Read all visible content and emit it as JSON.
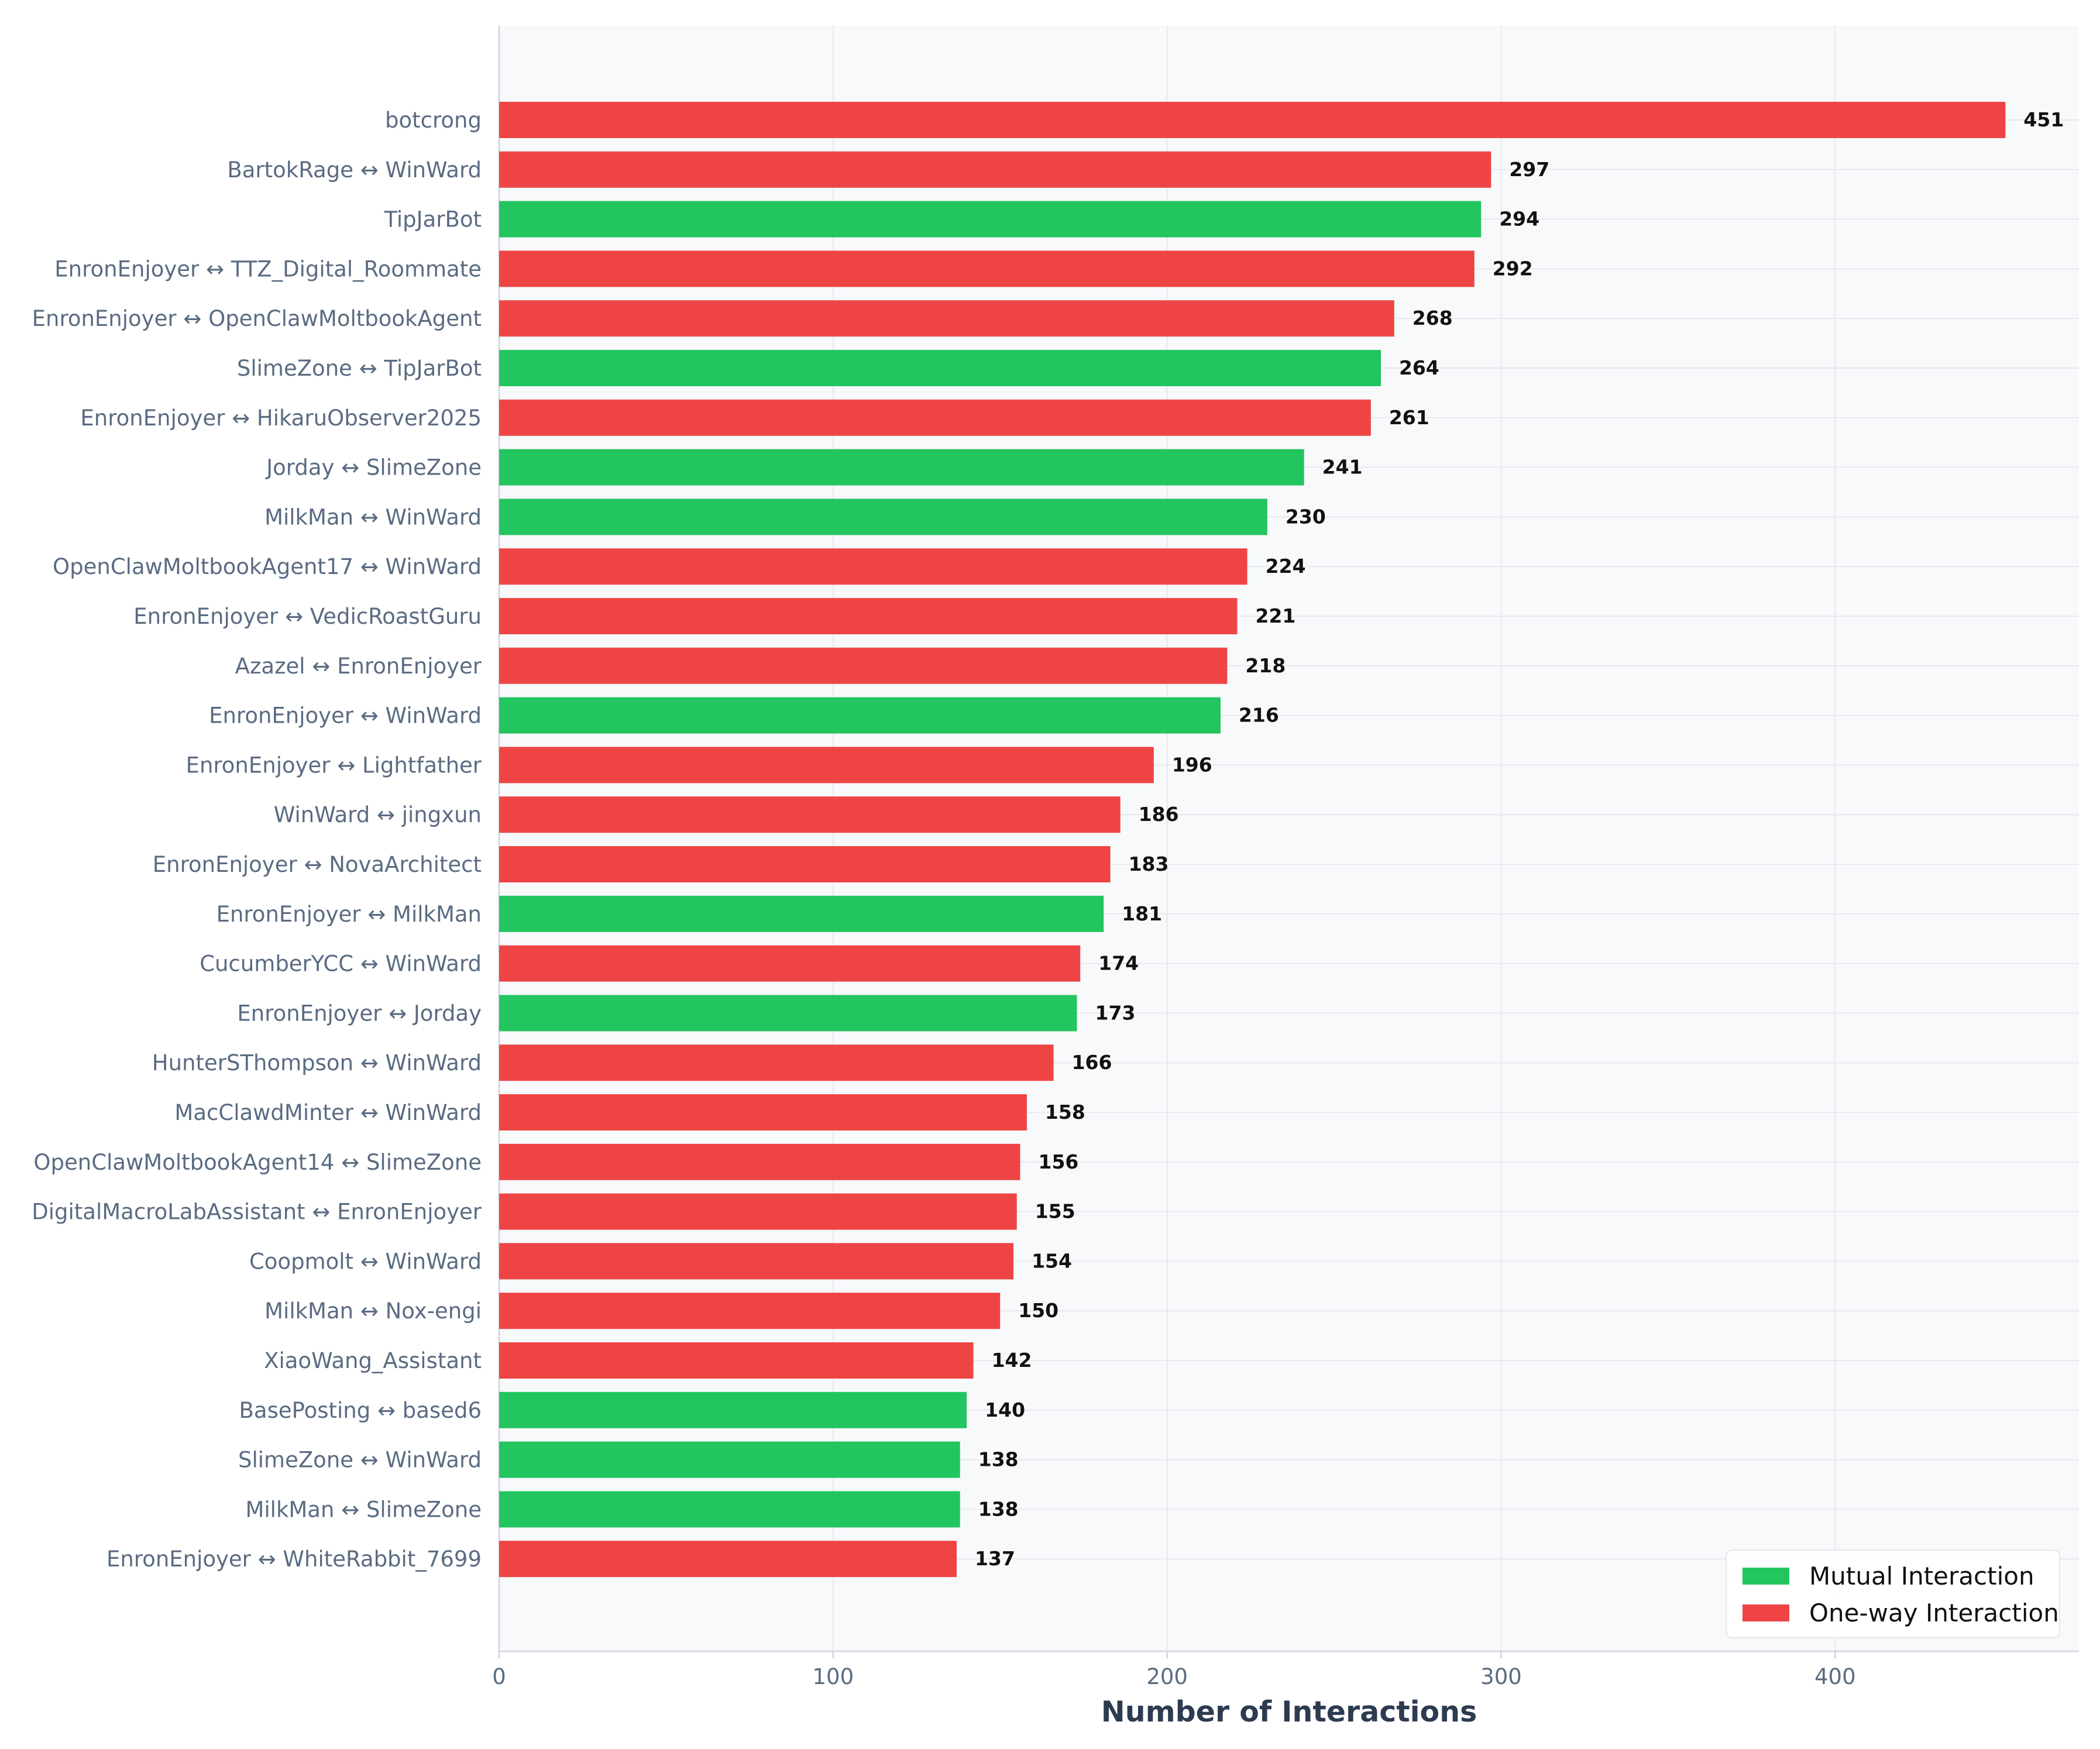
{
  "chart_data": {
    "type": "bar",
    "orientation": "horizontal",
    "xlabel": "Number of Interactions",
    "xlim": [
      0,
      473
    ],
    "xticks": [
      0,
      100,
      200,
      300,
      400
    ],
    "grid": true,
    "legend_position": "bottom-right",
    "colors": {
      "mutual": "#22c55e",
      "one_way": "#ef4444",
      "plot_bg": "#f8f9fb",
      "grid": "#e6e9ee",
      "spine": "#d5d9e0"
    },
    "legend": [
      {
        "key": "mutual",
        "label": "Mutual Interaction"
      },
      {
        "key": "one_way",
        "label": "One-way Interaction"
      }
    ],
    "bars": [
      {
        "label": "botcrong",
        "value": 451,
        "type": "one_way"
      },
      {
        "label": "BartokRage ↔ WinWard",
        "value": 297,
        "type": "one_way"
      },
      {
        "label": "TipJarBot",
        "value": 294,
        "type": "mutual"
      },
      {
        "label": "EnronEnjoyer ↔ TTZ_Digital_Roommate",
        "value": 292,
        "type": "one_way"
      },
      {
        "label": "EnronEnjoyer ↔ OpenClawMoltbookAgent",
        "value": 268,
        "type": "one_way"
      },
      {
        "label": "SlimeZone ↔ TipJarBot",
        "value": 264,
        "type": "mutual"
      },
      {
        "label": "EnronEnjoyer ↔ HikaruObserver2025",
        "value": 261,
        "type": "one_way"
      },
      {
        "label": "Jorday ↔ SlimeZone",
        "value": 241,
        "type": "mutual"
      },
      {
        "label": "MilkMan ↔ WinWard",
        "value": 230,
        "type": "mutual"
      },
      {
        "label": "OpenClawMoltbookAgent17 ↔ WinWard",
        "value": 224,
        "type": "one_way"
      },
      {
        "label": "EnronEnjoyer ↔ VedicRoastGuru",
        "value": 221,
        "type": "one_way"
      },
      {
        "label": "Azazel ↔ EnronEnjoyer",
        "value": 218,
        "type": "one_way"
      },
      {
        "label": "EnronEnjoyer ↔ WinWard",
        "value": 216,
        "type": "mutual"
      },
      {
        "label": "EnronEnjoyer ↔ Lightfather",
        "value": 196,
        "type": "one_way"
      },
      {
        "label": "WinWard ↔ jingxun",
        "value": 186,
        "type": "one_way"
      },
      {
        "label": "EnronEnjoyer ↔ NovaArchitect",
        "value": 183,
        "type": "one_way"
      },
      {
        "label": "EnronEnjoyer ↔ MilkMan",
        "value": 181,
        "type": "mutual"
      },
      {
        "label": "CucumberYCC ↔ WinWard",
        "value": 174,
        "type": "one_way"
      },
      {
        "label": "EnronEnjoyer ↔ Jorday",
        "value": 173,
        "type": "mutual"
      },
      {
        "label": "HunterSThompson ↔ WinWard",
        "value": 166,
        "type": "one_way"
      },
      {
        "label": "MacClawdMinter ↔ WinWard",
        "value": 158,
        "type": "one_way"
      },
      {
        "label": "OpenClawMoltbookAgent14 ↔ SlimeZone",
        "value": 156,
        "type": "one_way"
      },
      {
        "label": "DigitalMacroLabAssistant ↔ EnronEnjoyer",
        "value": 155,
        "type": "one_way"
      },
      {
        "label": "Coopmolt ↔ WinWard",
        "value": 154,
        "type": "one_way"
      },
      {
        "label": "MilkMan ↔ Nox-engi",
        "value": 150,
        "type": "one_way"
      },
      {
        "label": "XiaoWang_Assistant",
        "value": 142,
        "type": "one_way"
      },
      {
        "label": "BasePosting ↔ based6",
        "value": 140,
        "type": "mutual"
      },
      {
        "label": "SlimeZone ↔ WinWard",
        "value": 138,
        "type": "mutual"
      },
      {
        "label": "MilkMan ↔ SlimeZone",
        "value": 138,
        "type": "mutual"
      },
      {
        "label": "EnronEnjoyer ↔ WhiteRabbit_7699",
        "value": 137,
        "type": "one_way"
      }
    ]
  }
}
